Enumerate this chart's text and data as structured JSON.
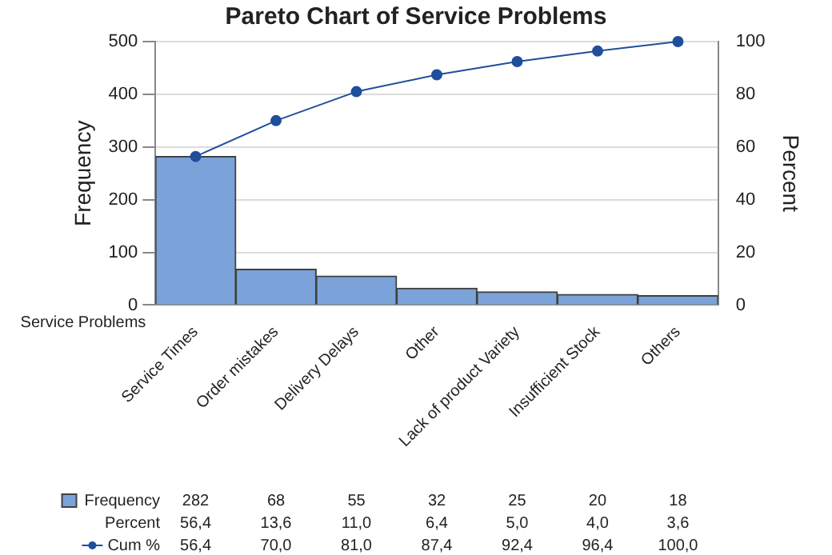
{
  "chart_data": {
    "type": "bar",
    "title": "Pareto Chart of Service Problems",
    "xlabel": "Service Problems",
    "ylabel": "Frequency",
    "y2label": "Percent",
    "categories": [
      "Service Times",
      "Order mistakes",
      "Delivery Delays",
      "Other",
      "Lack of product Variety",
      "Insufficient Stock",
      "Others"
    ],
    "series": [
      {
        "name": "Frequency",
        "color": "#7ba3d9",
        "values": [
          282,
          68,
          55,
          32,
          25,
          20,
          18
        ],
        "value_labels": [
          "282",
          "68",
          "55",
          "32",
          "25",
          "20",
          "18"
        ]
      },
      {
        "name": "Cum %",
        "type": "line",
        "axis": "y2",
        "color": "#1f4e9c",
        "values": [
          56.4,
          70.0,
          81.0,
          87.4,
          92.4,
          96.4,
          100.0
        ],
        "value_labels": [
          "56,4",
          "70,0",
          "81,0",
          "87,4",
          "92,4",
          "96,4",
          "100,0"
        ]
      }
    ],
    "annotations": [
      "Percent",
      "56,4",
      "13,6",
      "11,0",
      "6,4",
      "5,0",
      "4,0",
      "3,6"
    ],
    "ylim": [
      0,
      500
    ],
    "yticks": [
      0,
      100,
      200,
      300,
      400,
      500
    ],
    "y2lim": [
      0,
      100
    ],
    "y2ticks": [
      0,
      20,
      40,
      60,
      80,
      100
    ],
    "grid": "y",
    "legend": "bottom left",
    "marker": "circle",
    "line_style": "solid"
  }
}
